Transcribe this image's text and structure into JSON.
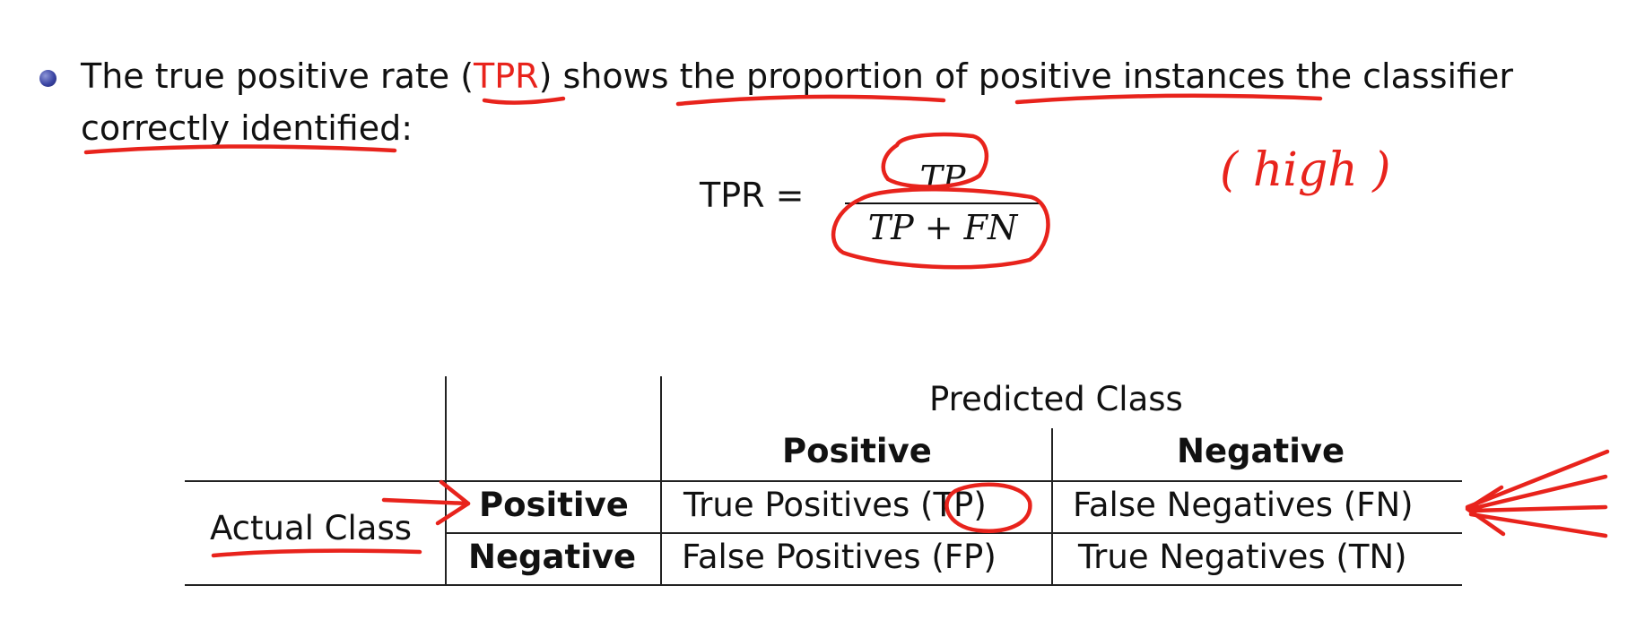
{
  "bullet": {
    "line1": {
      "seg1": "The true positive rate (",
      "tpr": "TPR",
      "seg2": ") shows the proportion of positive instances the classifier"
    },
    "line2": "correctly identified:"
  },
  "formula": {
    "lhs": "TPR =",
    "numerator": "TP",
    "denominator": "TP + FN"
  },
  "annotation_note": "( high )",
  "table": {
    "predicted_class": "Predicted Class",
    "col_positive": "Positive",
    "col_negative": "Negative",
    "actual_class": "Actual Class",
    "row_positive": "Positive",
    "row_negative": "Negative",
    "cell_tp": "True Positives (TP)",
    "cell_fn": "False Negatives (FN)",
    "cell_fp": "False Positives (FP)",
    "cell_tn": "True Negatives (TN)"
  },
  "colors": {
    "annotation": "#e8231c",
    "bullet": "#3b45a3",
    "text": "#111111"
  }
}
